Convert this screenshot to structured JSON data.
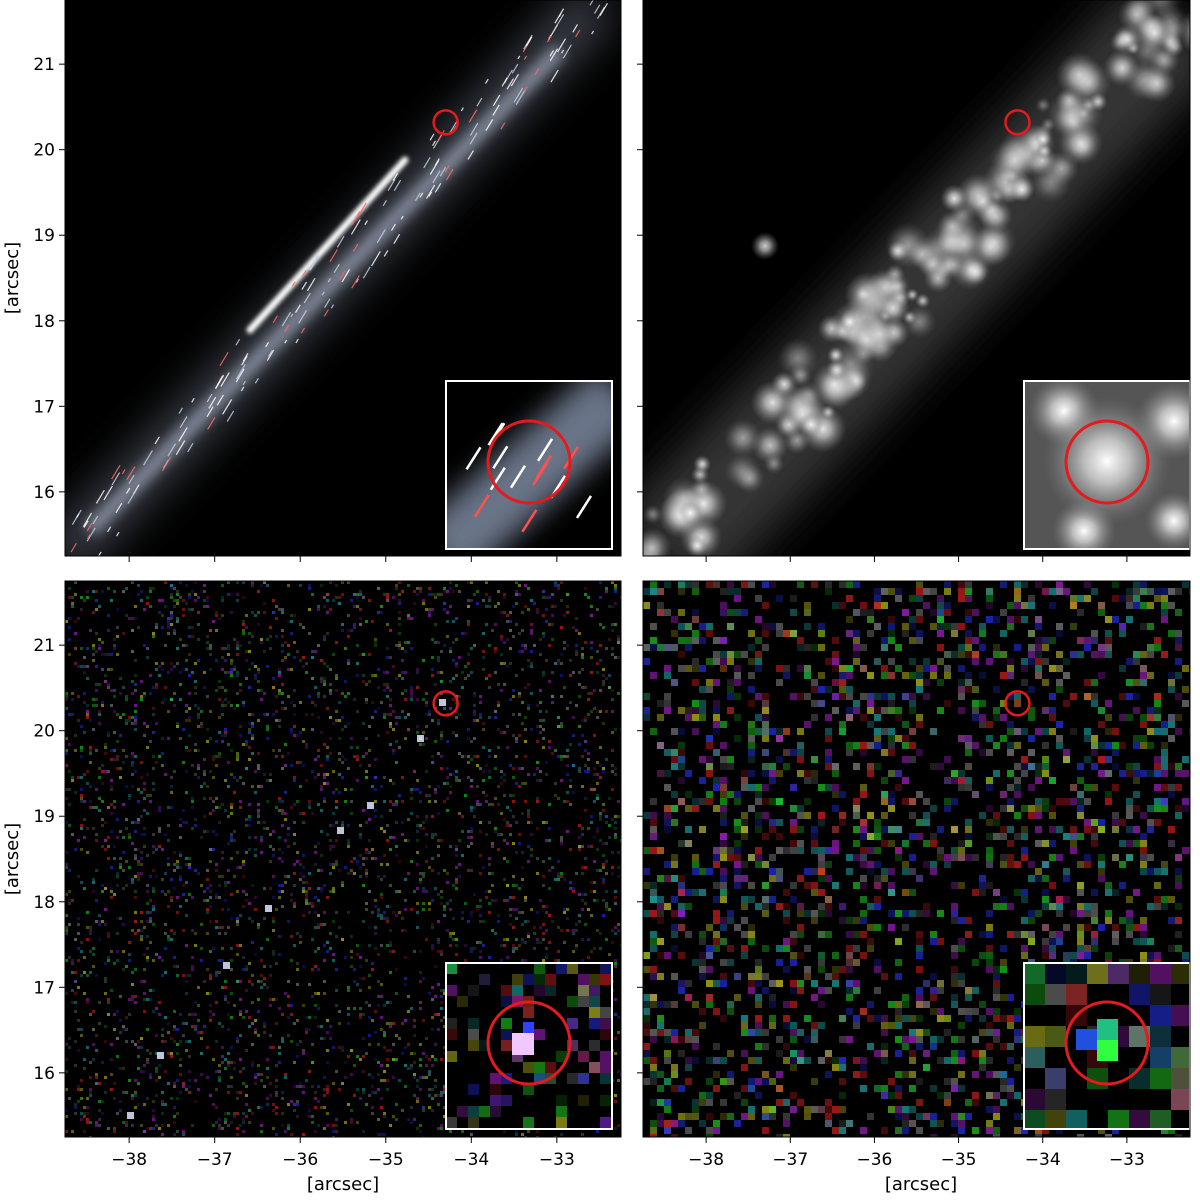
{
  "figure": {
    "xlabel": "[arcsec]",
    "ylabel": "[arcsec]",
    "x_ticks": [
      "−38",
      "−37",
      "−36",
      "−35",
      "−34",
      "−33"
    ],
    "y_ticks": [
      "21",
      "20",
      "19",
      "18",
      "17",
      "16"
    ],
    "x_range": [
      -38.75,
      -32.25
    ],
    "y_range": [
      15.25,
      21.75
    ],
    "marker": {
      "x": -34.3,
      "y": 20.32,
      "color": "#e41a1c"
    },
    "panels": [
      {
        "position": "top-left",
        "content": "lensed arc streaks, white on black"
      },
      {
        "position": "top-right",
        "content": "grey star clusters along a diagonal band"
      },
      {
        "position": "bottom-left",
        "content": "fine RGB pixel noise with bright knots"
      },
      {
        "position": "bottom-right",
        "content": "coarse RGB pixel noise"
      }
    ],
    "inset": {
      "frame_color": "#ffffff",
      "circle_color": "#e41a1c"
    }
  }
}
